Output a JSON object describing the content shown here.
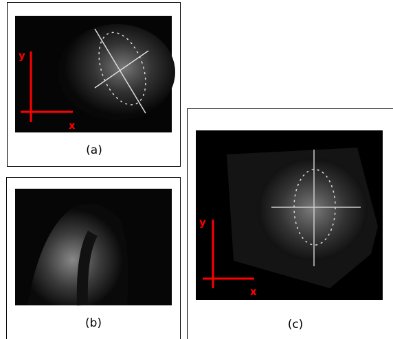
{
  "panels": [
    {
      "caption": "(a)",
      "axis_labels": {
        "y": "y",
        "x": "x"
      }
    },
    {
      "caption": "(b)"
    },
    {
      "caption": "(c)",
      "axis_labels": {
        "y": "y",
        "x": "x"
      }
    }
  ]
}
